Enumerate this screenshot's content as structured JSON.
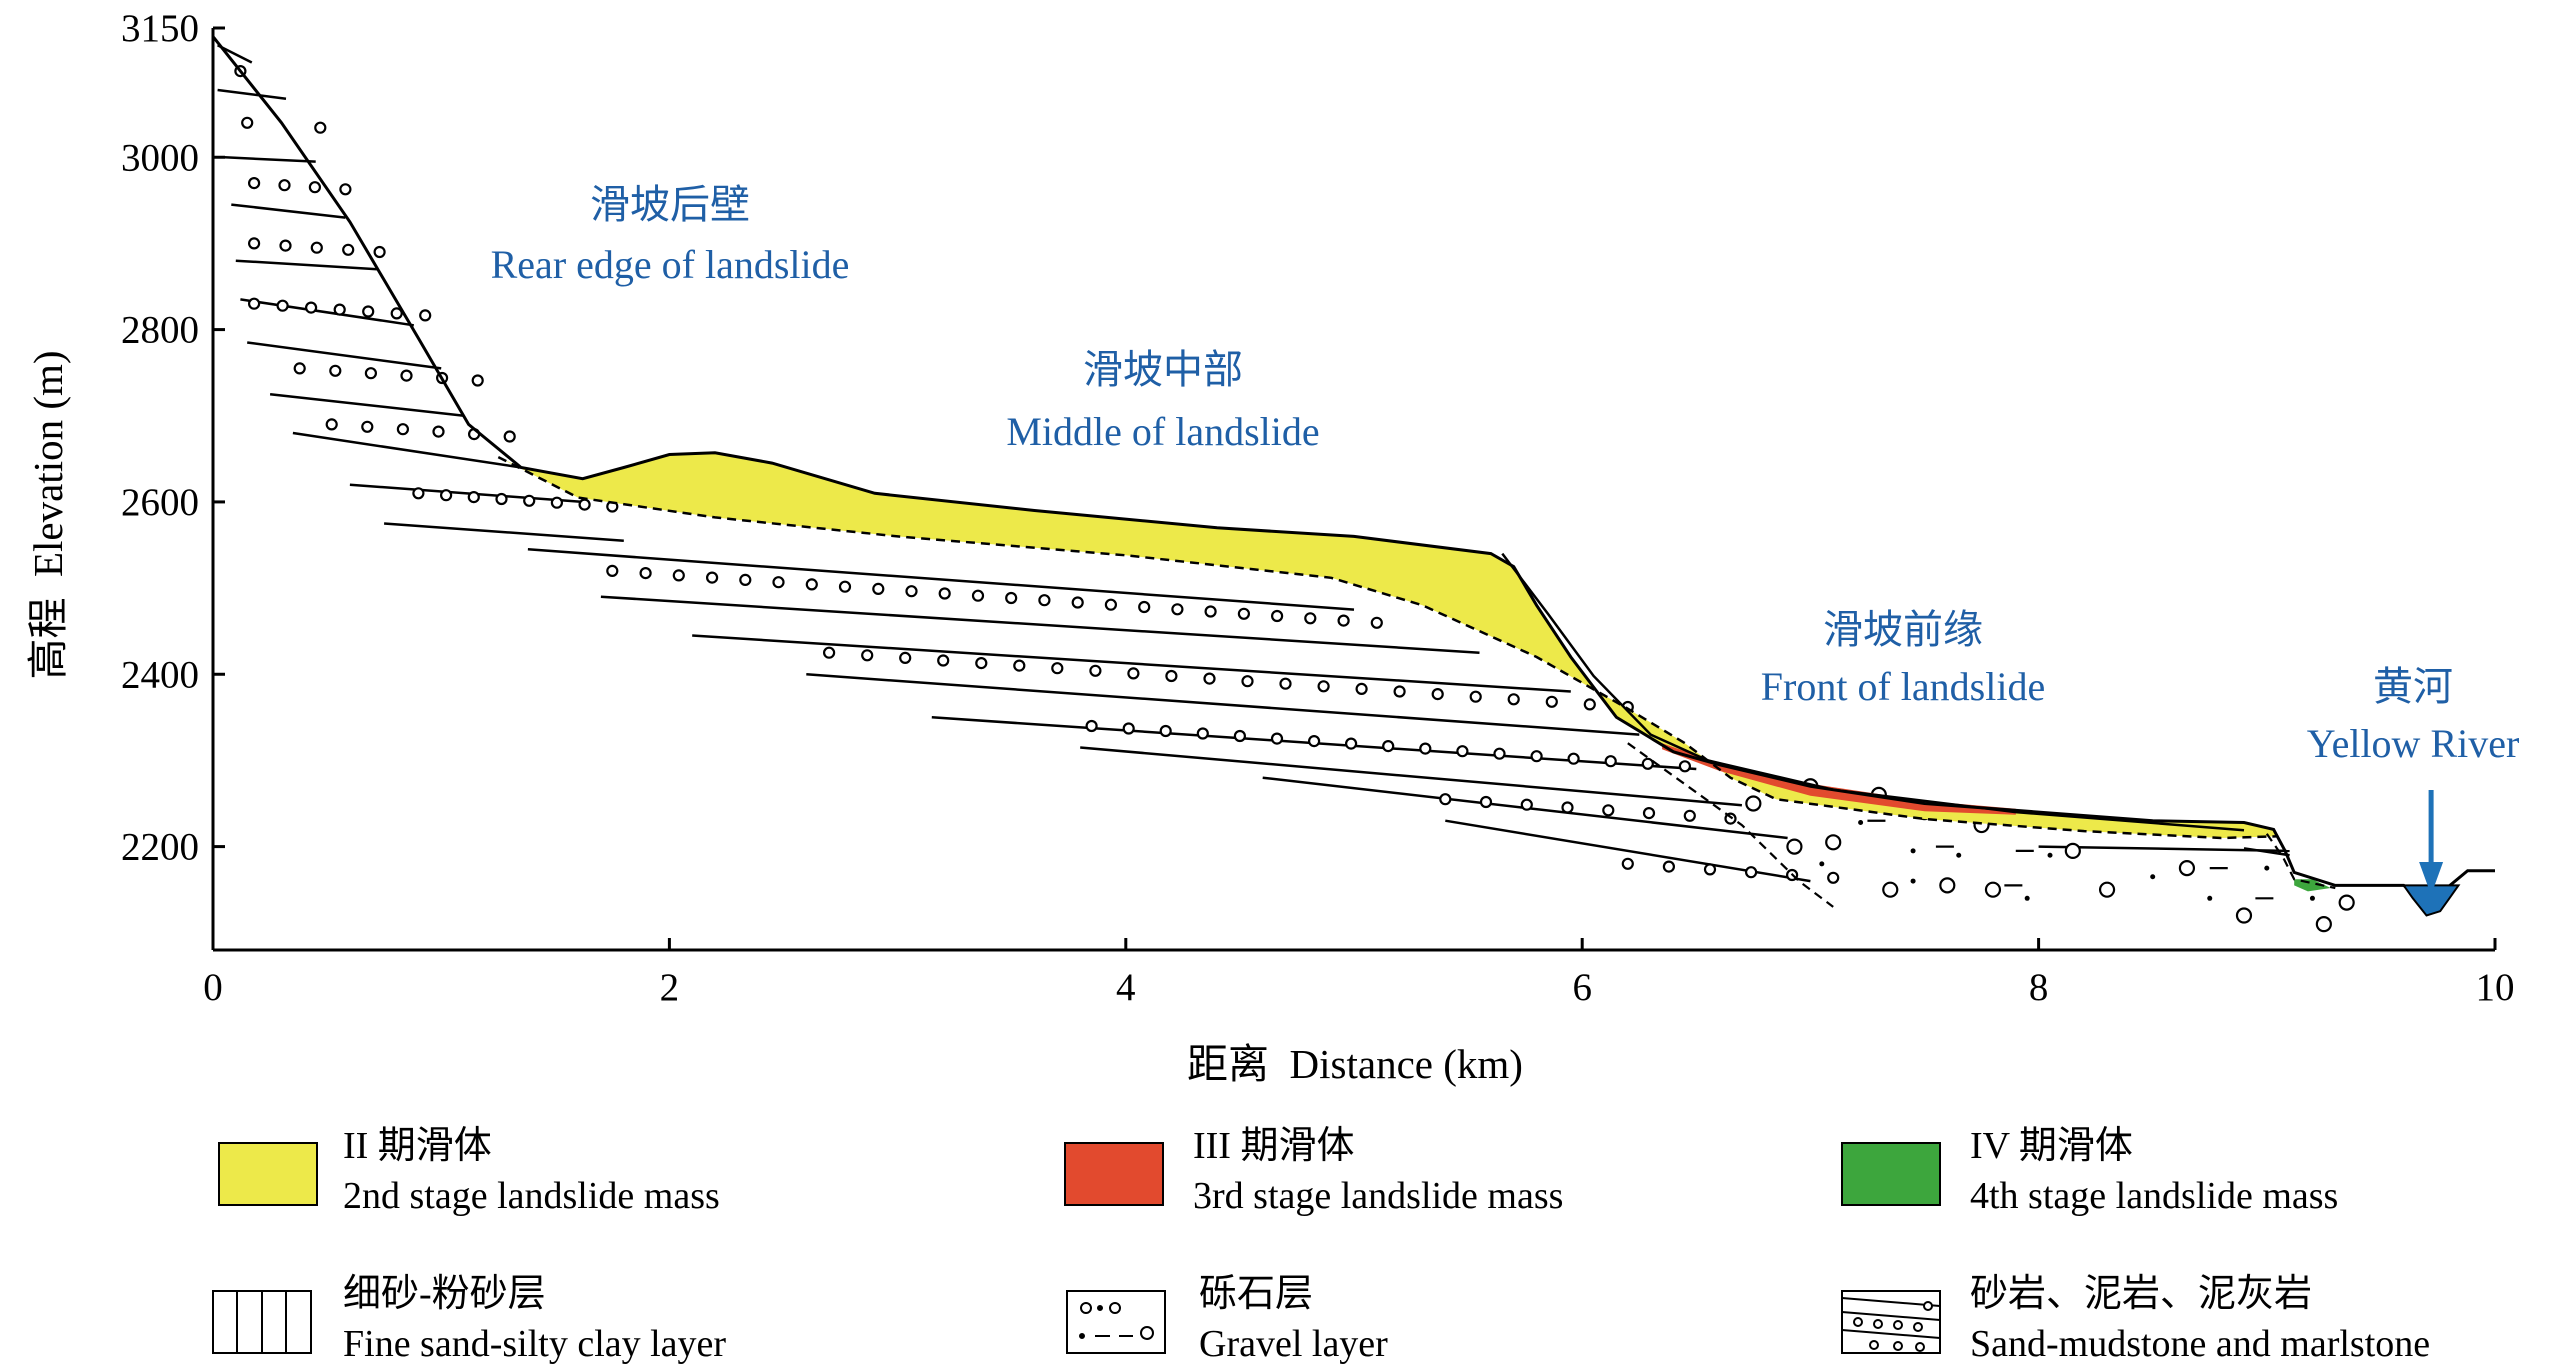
{
  "chart_data": {
    "type": "cross-section",
    "xlabel": "距离  Distance (km)",
    "ylabel": "高程  Elevation (m)",
    "xlim": [
      0,
      10
    ],
    "ylim": [
      2080,
      3150
    ],
    "x_ticks": [
      "0",
      "2",
      "4",
      "6",
      "8",
      "10"
    ],
    "y_ticks": [
      "2200",
      "2400",
      "2600",
      "2800",
      "3000",
      "3150"
    ],
    "annotations": [
      {
        "cn": "滑坡后壁",
        "en": "Rear edge of landslide"
      },
      {
        "cn": "滑坡中部",
        "en": "Middle of landslide"
      },
      {
        "cn": "滑坡前缘",
        "en": "Front of landslide"
      },
      {
        "cn": "黄河",
        "en": "Yellow River"
      }
    ],
    "legend": [
      {
        "cn": "II 期滑体",
        "en": "2nd stage landslide mass",
        "color": "#ede94a"
      },
      {
        "cn": "III 期滑体",
        "en": "3rd stage landslide mass",
        "color": "#e24a2e"
      },
      {
        "cn": "IV 期滑体",
        "en": "4th stage landslide mass",
        "color": "#3da63d"
      },
      {
        "cn": "细砂-粉砂层",
        "en": "Fine sand-silty clay layer",
        "pattern": "vertical-lines"
      },
      {
        "cn": "砾石层",
        "en": "Gravel layer",
        "pattern": "circles-dots-dashes"
      },
      {
        "cn": "砂岩、泥岩、泥灰岩",
        "en": "Sand-mudstone and marlstone",
        "pattern": "lines-circles"
      }
    ],
    "colors": {
      "annotation": "#1f5fa6",
      "river": "#1e72b8",
      "axis": "#000000"
    }
  }
}
